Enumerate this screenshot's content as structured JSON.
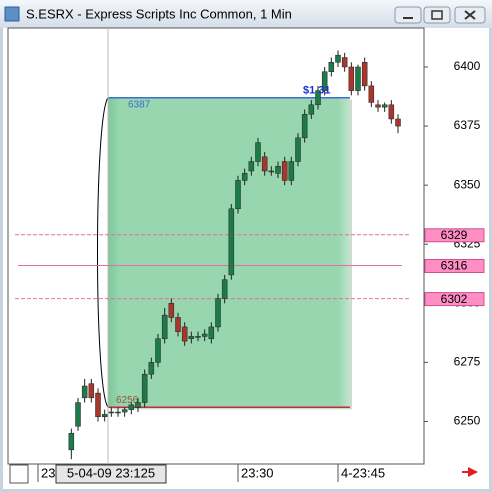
{
  "window": {
    "title": "S.ESRX - Express Scripts Inc Common, 1 Min"
  },
  "chart_data": {
    "type": "candlestick",
    "x": [
      5,
      6,
      7,
      8,
      9,
      10,
      11,
      12,
      13,
      14,
      15,
      16,
      17,
      18,
      19,
      20,
      21,
      22,
      23,
      24,
      25,
      26,
      27,
      28,
      29,
      30,
      31,
      32,
      33,
      34,
      35,
      36,
      37,
      38,
      39,
      40,
      41,
      42,
      43,
      44,
      45,
      46,
      47,
      48,
      49,
      50,
      51,
      52,
      53,
      54
    ],
    "open": [
      6238,
      6248,
      6260,
      6266,
      6262,
      6252,
      6254,
      6254,
      6254,
      6255,
      6256,
      6258,
      6270,
      6275,
      6285,
      6300,
      6294,
      6290,
      6285,
      6286,
      6286,
      6285,
      6290,
      6302,
      6312,
      6340,
      6352,
      6356,
      6360,
      6362,
      6356,
      6355,
      6360,
      6352,
      6360,
      6370,
      6380,
      6384,
      6390,
      6398,
      6402,
      6404,
      6400,
      6390,
      6402,
      6392,
      6384,
      6383,
      6384,
      6378
    ],
    "high": [
      6247,
      6260,
      6268,
      6268,
      6264,
      6255,
      6256,
      6256,
      6256,
      6258,
      6260,
      6272,
      6277,
      6287,
      6298,
      6302,
      6296,
      6292,
      6288,
      6288,
      6289,
      6292,
      6304,
      6312,
      6342,
      6354,
      6357,
      6362,
      6370,
      6364,
      6358,
      6360,
      6362,
      6362,
      6372,
      6382,
      6386,
      6392,
      6400,
      6404,
      6407,
      6406,
      6402,
      6401,
      6404,
      6394,
      6386,
      6385,
      6386,
      6380
    ],
    "low": [
      6234,
      6246,
      6258,
      6258,
      6250,
      6250,
      6252,
      6252,
      6252,
      6253,
      6254,
      6256,
      6268,
      6273,
      6283,
      6292,
      6286,
      6282,
      6283,
      6284,
      6284,
      6283,
      6288,
      6300,
      6310,
      6338,
      6350,
      6354,
      6358,
      6354,
      6354,
      6353,
      6350,
      6350,
      6358,
      6368,
      6378,
      6382,
      6388,
      6396,
      6400,
      6398,
      6388,
      6388,
      6390,
      6383,
      6381,
      6381,
      6376,
      6372
    ],
    "close": [
      6245,
      6258,
      6265,
      6260,
      6252,
      6253,
      6254,
      6254,
      6255,
      6257,
      6258,
      6270,
      6275,
      6285,
      6295,
      6294,
      6288,
      6284,
      6286,
      6286,
      6287,
      6290,
      6302,
      6310,
      6340,
      6352,
      6355,
      6360,
      6368,
      6356,
      6356,
      6358,
      6352,
      6360,
      6370,
      6380,
      6384,
      6390,
      6398,
      6402,
      6405,
      6400,
      6390,
      6400,
      6392,
      6385,
      6383,
      6384,
      6378,
      6375
    ],
    "up_color": "#1f7a4a",
    "down_color": "#a8362c",
    "xlim": [
      -4.5,
      57.9
    ],
    "ylim": [
      6232,
      6416.5
    ],
    "xticks": [
      {
        "value": 0,
        "label": "23"
      },
      {
        "value": 30,
        "label": "23:30"
      },
      {
        "value": 45,
        "label": "4-23:45"
      }
    ],
    "yticks": [
      6250,
      6275,
      6300,
      6325,
      6350,
      6375,
      6400
    ],
    "levels": [
      6329,
      6316,
      6302
    ],
    "box": {
      "x_start": 10.5,
      "x_end": 46.8,
      "top": 6387,
      "bottom": 6256,
      "profit": "$1 31"
    },
    "crosshair": {
      "x": 10.5,
      "label": "5-04-09 23:125"
    }
  }
}
